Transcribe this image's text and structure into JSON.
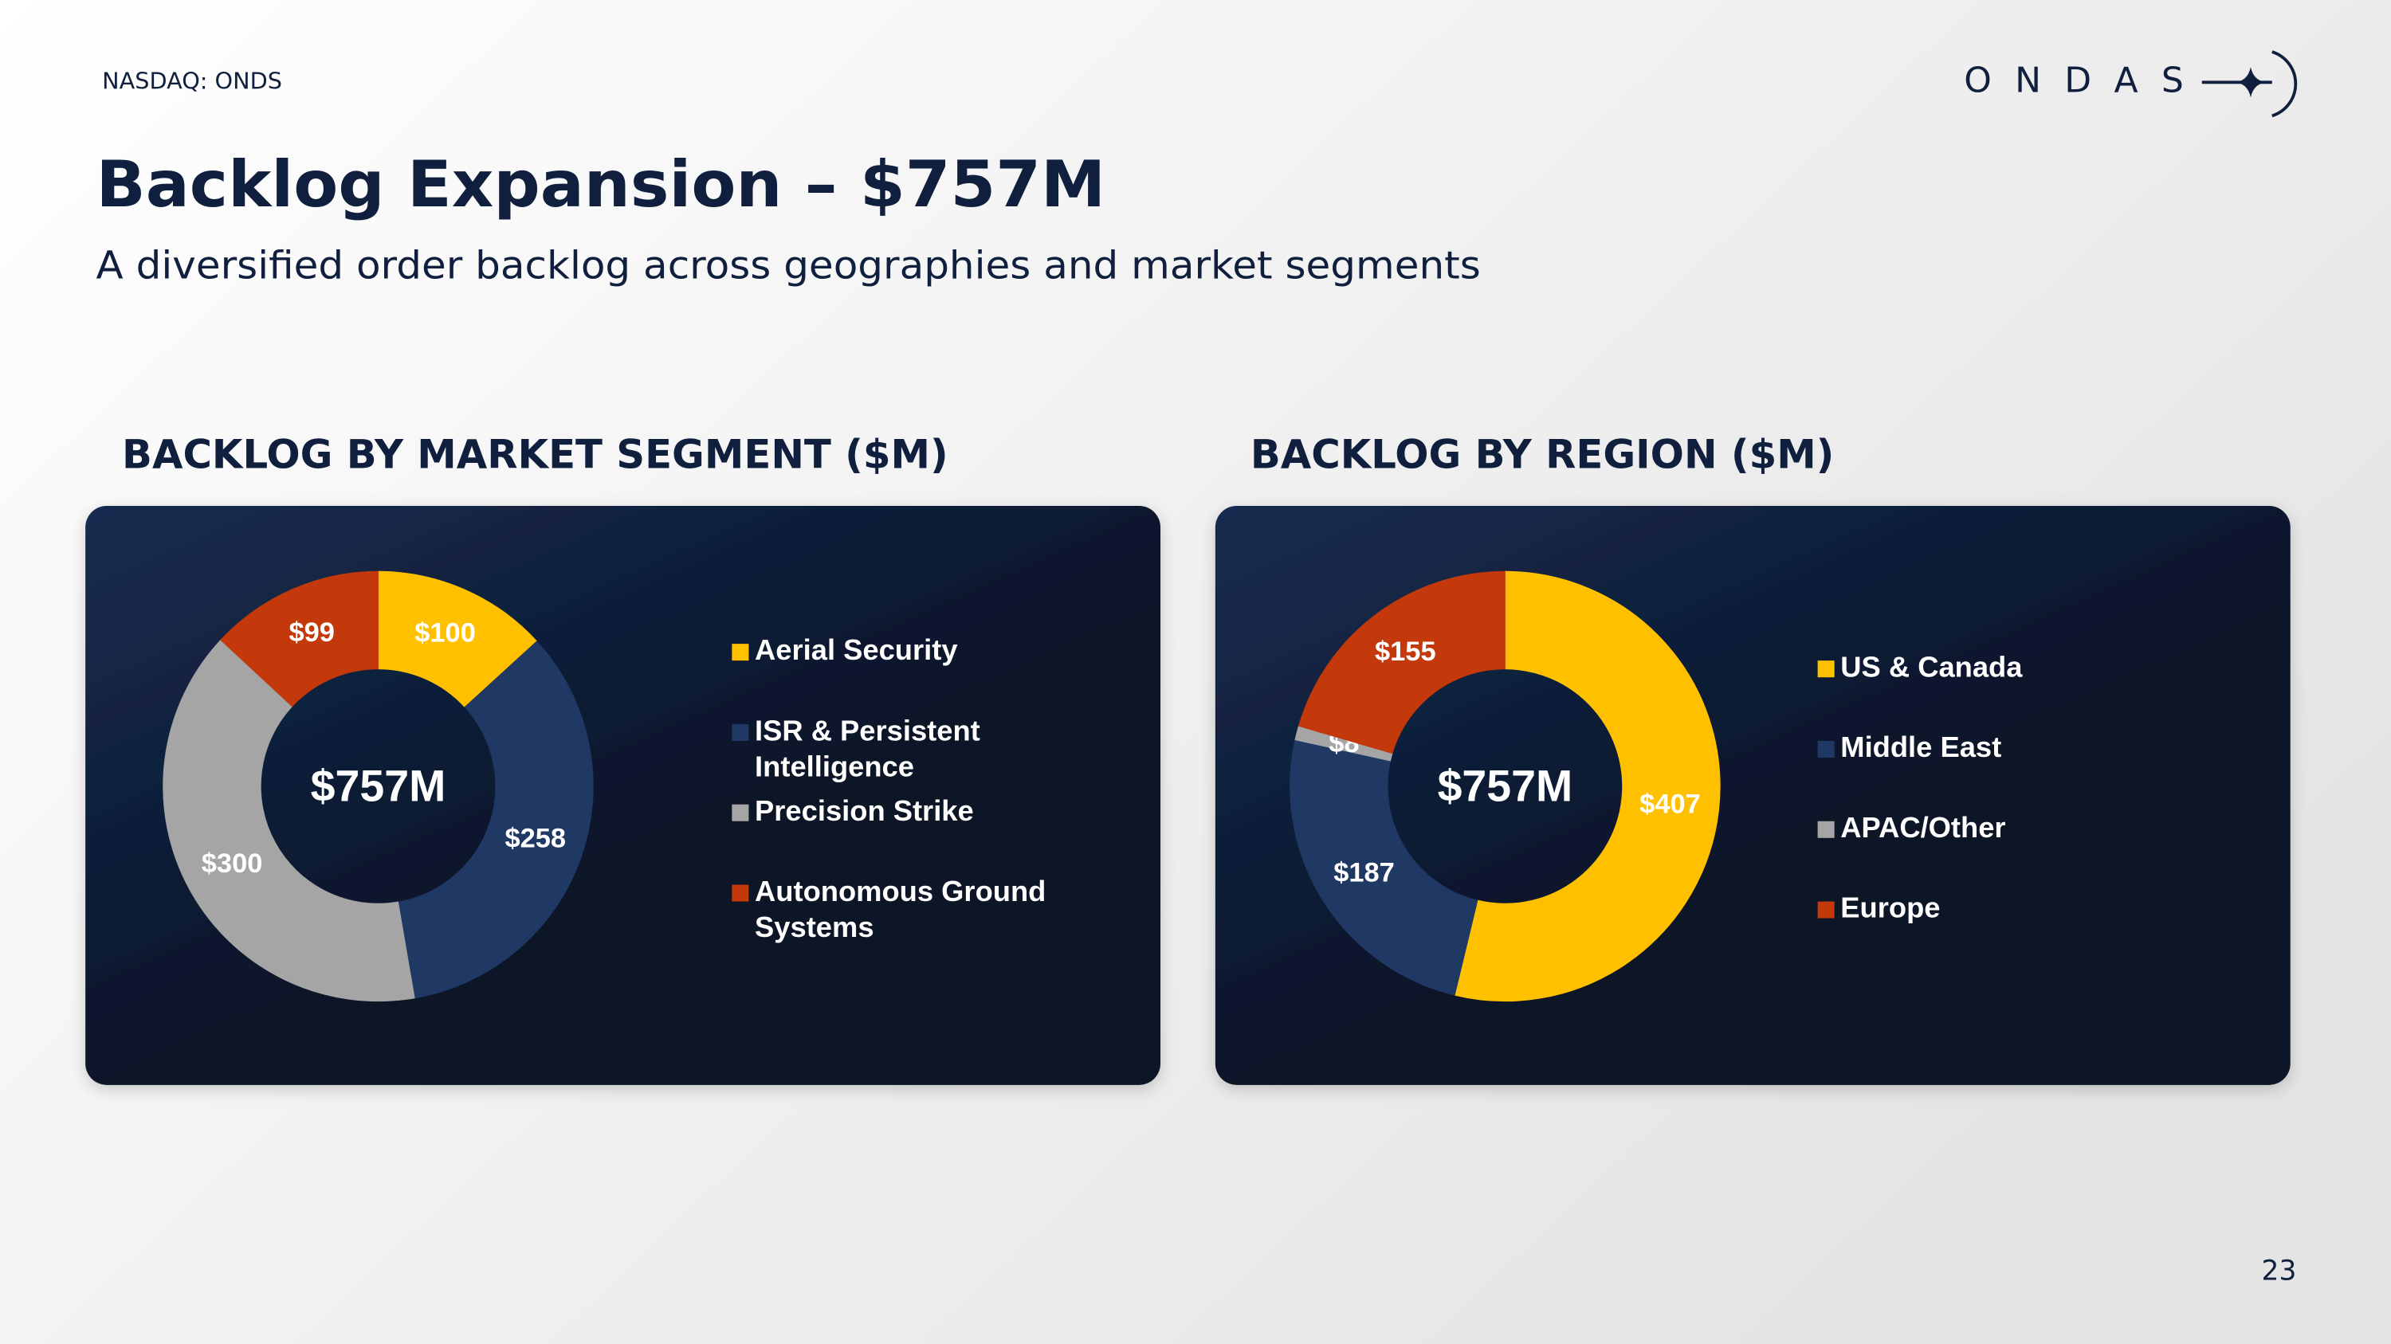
{
  "header": {
    "ticker": "NASDAQ: ONDS",
    "logo": "ONDAS",
    "title": "Backlog Expansion – $757M",
    "subtitle": "A diversified order backlog across geographies and market segments",
    "page_number": "23"
  },
  "chart_data": [
    {
      "type": "donut",
      "title": "BACKLOG BY MARKET SEGMENT  ($M)",
      "center_label": "$757M",
      "categories": [
        "Aerial Security",
        "ISR & Persistent Intelligence",
        "Precision Strike",
        "Autonomous Ground Systems"
      ],
      "values": [
        100,
        258,
        300,
        99
      ],
      "value_labels": [
        "$100",
        "$258",
        "$300",
        "$99"
      ],
      "colors": [
        "#ffc000",
        "#1f3864",
        "#a5a5a5",
        "#c3390b"
      ],
      "legend": "right"
    },
    {
      "type": "donut",
      "title": "BACKLOG BY REGION ($M)",
      "center_label": "$757M",
      "categories": [
        "US & Canada",
        "Middle East",
        "APAC/Other",
        "Europe"
      ],
      "values": [
        407,
        187,
        8,
        155
      ],
      "value_labels": [
        "$407",
        "$187",
        "$8",
        "$155"
      ],
      "colors": [
        "#ffc000",
        "#1f3864",
        "#a5a5a5",
        "#c3390b"
      ],
      "legend": "right"
    }
  ]
}
